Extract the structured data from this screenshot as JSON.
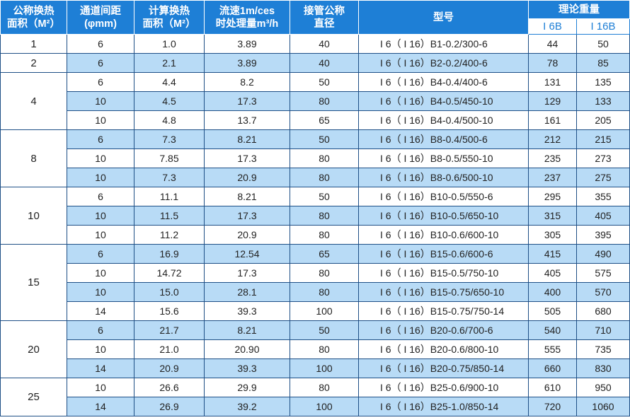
{
  "header": {
    "nominal_area": [
      "公称换热",
      "面积（M²）"
    ],
    "channel_gap": [
      "通道间距",
      "(φmm)"
    ],
    "calc_area": [
      "计算换热",
      "面积（M²）"
    ],
    "flow": [
      "流速1m/ces",
      "时处理量m³/h"
    ],
    "pipe": [
      "接管公称",
      "直径"
    ],
    "model": "型号",
    "weight": "理论重量",
    "weight_i6b": "I 6B",
    "weight_i16b": "I 16B"
  },
  "groups": [
    {
      "nominal": "1",
      "rows": [
        {
          "gap": "6",
          "area": "1.0",
          "flow": "3.89",
          "pipe": "40",
          "model": "I 6（ I 16）B1-0.2/300-6",
          "w1": "44",
          "w2": "50"
        }
      ]
    },
    {
      "nominal": "2",
      "rows": [
        {
          "gap": "6",
          "area": "2.1",
          "flow": "3.89",
          "pipe": "40",
          "model": "I 6（ I 16）B2-0.2/400-6",
          "w1": "78",
          "w2": "85"
        }
      ]
    },
    {
      "nominal": "4",
      "rows": [
        {
          "gap": "6",
          "area": "4.4",
          "flow": "8.2",
          "pipe": "50",
          "model": "I 6（ I 16）B4-0.4/400-6",
          "w1": "131",
          "w2": "135"
        },
        {
          "gap": "10",
          "area": "4.5",
          "flow": "17.3",
          "pipe": "80",
          "model": "I 6（ I 16）B4-0.5/450-10",
          "w1": "129",
          "w2": "133"
        },
        {
          "gap": "10",
          "area": "4.8",
          "flow": "13.7",
          "pipe": "65",
          "model": "I 6（ I 16）B4-0.4/500-10",
          "w1": "161",
          "w2": "205"
        }
      ]
    },
    {
      "nominal": "8",
      "rows": [
        {
          "gap": "6",
          "area": "7.3",
          "flow": "8.21",
          "pipe": "50",
          "model": "I 6（ I 16）B8-0.4/500-6",
          "w1": "212",
          "w2": "215"
        },
        {
          "gap": "10",
          "area": "7.85",
          "flow": "17.3",
          "pipe": "80",
          "model": "I 6（ I 16）B8-0.5/550-10",
          "w1": "235",
          "w2": "273"
        },
        {
          "gap": "10",
          "area": "7.3",
          "flow": "20.9",
          "pipe": "80",
          "model": "I 6（ I 16）B8-0.6/500-10",
          "w1": "237",
          "w2": "275"
        }
      ]
    },
    {
      "nominal": "10",
      "rows": [
        {
          "gap": "6",
          "area": "11.1",
          "flow": "8.21",
          "pipe": "50",
          "model": "I 6（ I 16）B10-0.5/550-6",
          "w1": "295",
          "w2": "355"
        },
        {
          "gap": "10",
          "area": "11.5",
          "flow": "17.3",
          "pipe": "80",
          "model": "I 6（ I 16）B10-0.5/650-10",
          "w1": "315",
          "w2": "405"
        },
        {
          "gap": "10",
          "area": "11.2",
          "flow": "20.9",
          "pipe": "80",
          "model": "I 6（ I 16）B10-0.6/600-10",
          "w1": "305",
          "w2": "395"
        }
      ]
    },
    {
      "nominal": "15",
      "rows": [
        {
          "gap": "6",
          "area": "16.9",
          "flow": "12.54",
          "pipe": "65",
          "model": "I 6（ I 16）B15-0.6/600-6",
          "w1": "415",
          "w2": "490"
        },
        {
          "gap": "10",
          "area": "14.72",
          "flow": "17.3",
          "pipe": "80",
          "model": "I 6（ I 16）B15-0.5/750-10",
          "w1": "405",
          "w2": "575"
        },
        {
          "gap": "10",
          "area": "15.0",
          "flow": "28.1",
          "pipe": "80",
          "model": "I 6（ I 16）B15-0.75/650-10",
          "w1": "400",
          "w2": "570"
        },
        {
          "gap": "14",
          "area": "15.6",
          "flow": "39.3",
          "pipe": "100",
          "model": "I 6（ I 16）B15-0.75/750-14",
          "w1": "505",
          "w2": "680"
        }
      ]
    },
    {
      "nominal": "20",
      "rows": [
        {
          "gap": "6",
          "area": "21.7",
          "flow": "8.21",
          "pipe": "50",
          "model": "I 6（ I 16）B20-0.6/700-6",
          "w1": "540",
          "w2": "710"
        },
        {
          "gap": "10",
          "area": "21.0",
          "flow": "20.90",
          "pipe": "80",
          "model": "I 6（ I 16）B20-0.6/800-10",
          "w1": "555",
          "w2": "735"
        },
        {
          "gap": "14",
          "area": "20.9",
          "flow": "39.3",
          "pipe": "100",
          "model": "I 6（ I 16）B20-0.75/850-14",
          "w1": "660",
          "w2": "830"
        }
      ]
    },
    {
      "nominal": "25",
      "rows": [
        {
          "gap": "10",
          "area": "26.6",
          "flow": "29.9",
          "pipe": "80",
          "model": "I 6（ I 16）B25-0.6/900-10",
          "w1": "610",
          "w2": "950"
        },
        {
          "gap": "14",
          "area": "26.9",
          "flow": "39.2",
          "pipe": "100",
          "model": "I 6（ I 16）B25-1.0/850-14",
          "w1": "720",
          "w2": "1060"
        }
      ]
    }
  ],
  "colors": {
    "header_blue": "#1e7fd6",
    "row_highlight": "#b8dbf6",
    "grid_line": "#1e4f86"
  }
}
